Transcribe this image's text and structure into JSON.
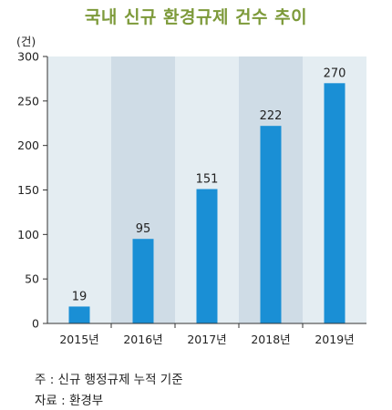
{
  "chart_data": {
    "type": "bar",
    "title": "국내 신규 환경규제 건수 추이",
    "unit_label": "(건)",
    "categories": [
      "2015년",
      "2016년",
      "2017년",
      "2018년",
      "2019년"
    ],
    "values": [
      19,
      95,
      151,
      222,
      270
    ],
    "data_labels": [
      "19",
      "95",
      "151",
      "222",
      "270"
    ],
    "ylim": [
      0,
      300
    ],
    "yticks": [
      0,
      50,
      100,
      150,
      200,
      250,
      300
    ],
    "ytick_labels": [
      "0",
      "50",
      "100",
      "150",
      "200",
      "250",
      "300"
    ],
    "grid": false,
    "colors": {
      "bar": "#1a8fd5",
      "band_light": "#e4edf2",
      "band_dark": "#cfdce6",
      "title": "#7d9a3a"
    }
  },
  "footnotes": {
    "note": "주 : 신규 행정규제 누적 기준",
    "source": "자료 : 환경부"
  }
}
